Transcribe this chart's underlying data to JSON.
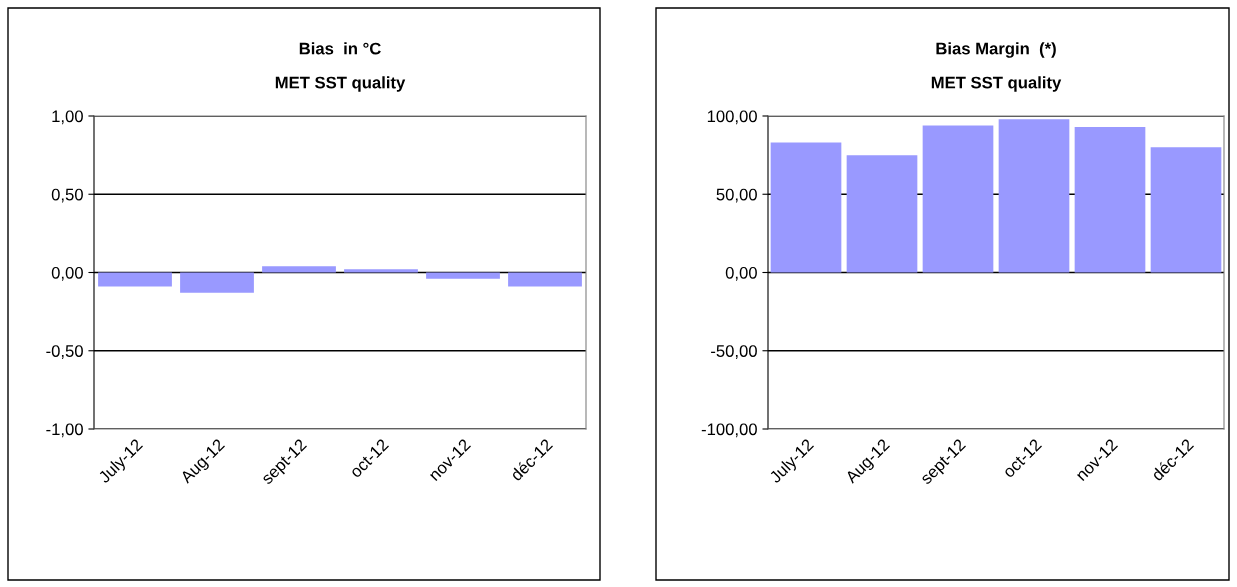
{
  "chart_data": [
    {
      "type": "bar",
      "title": "Bias  in °C",
      "subtitle": "MET SST quality",
      "categories": [
        "July-12",
        "Aug-12",
        "sept-12",
        "oct-12",
        "nov-12",
        "déc-12"
      ],
      "values": [
        -0.09,
        -0.13,
        0.04,
        0.02,
        -0.04,
        -0.09
      ],
      "color": "#9999ff",
      "ylim": [
        -1,
        1
      ],
      "yticks": [
        {
          "value": -1,
          "label": "-1,00"
        },
        {
          "value": -0.5,
          "label": "-0,50"
        },
        {
          "value": 0,
          "label": "0,00"
        },
        {
          "value": 0.5,
          "label": "0,50"
        },
        {
          "value": 1,
          "label": "1,00"
        }
      ],
      "grid": "y"
    },
    {
      "type": "bar",
      "title": "Bias Margin  (*)",
      "subtitle": "MET SST quality",
      "categories": [
        "July-12",
        "Aug-12",
        "sept-12",
        "oct-12",
        "nov-12",
        "déc-12"
      ],
      "values": [
        83,
        75,
        94,
        98,
        93,
        80
      ],
      "color": "#9999ff",
      "ylim": [
        -100,
        100
      ],
      "yticks": [
        {
          "value": -100,
          "label": "-100,00"
        },
        {
          "value": -50,
          "label": "-50,00"
        },
        {
          "value": 0,
          "label": "0,00"
        },
        {
          "value": 50,
          "label": "50,00"
        },
        {
          "value": 100,
          "label": "100,00"
        }
      ],
      "grid": "y"
    }
  ]
}
